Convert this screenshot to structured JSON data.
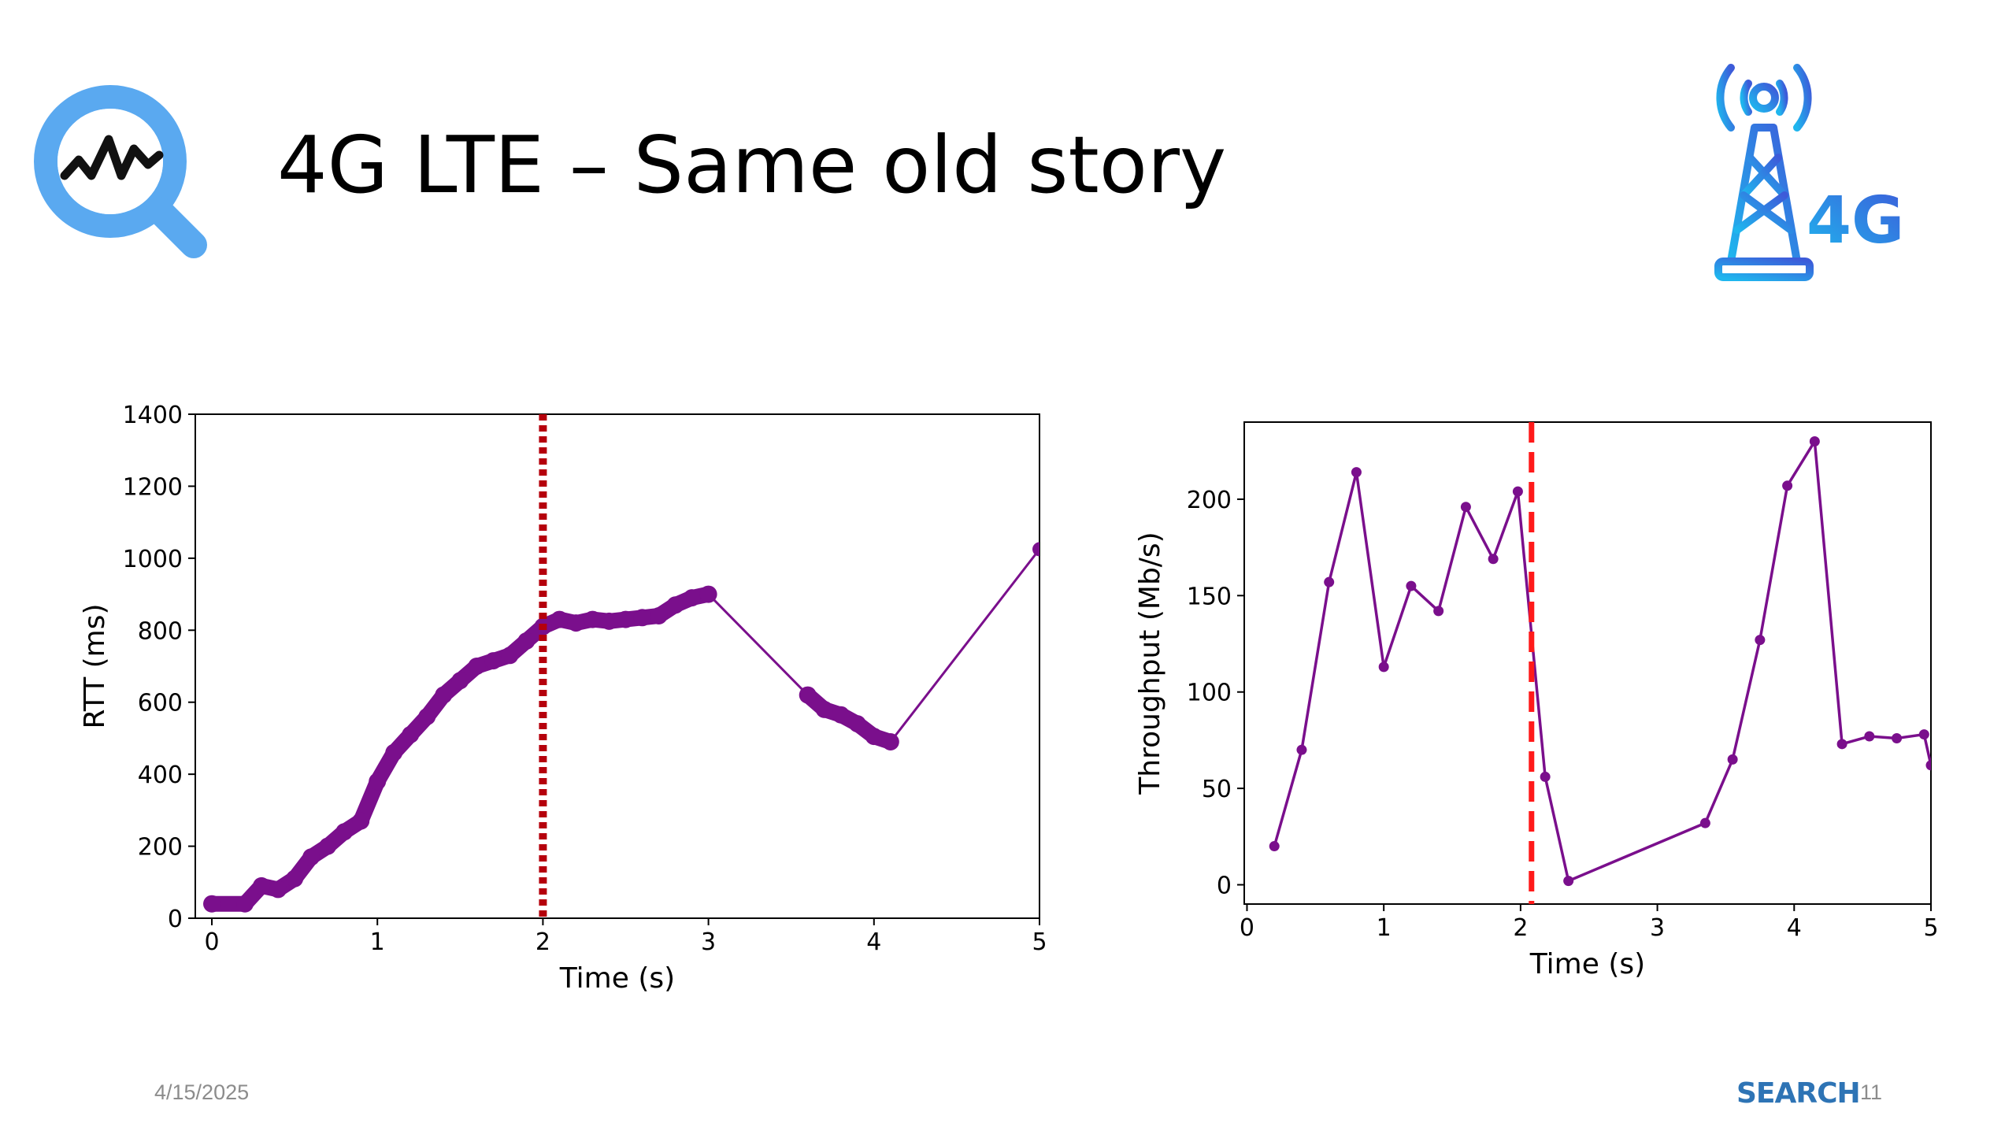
{
  "slide": {
    "title": "4G LTE – Same old story",
    "date": "4/15/2025",
    "brand": "SEARCH",
    "page_number": "11",
    "logo_right_label": "4G"
  },
  "colors": {
    "series": "#7a0f8c",
    "marker_left": "#b5000c",
    "marker_right": "#ff1a1a",
    "brand": "#2e74b5",
    "icon_blue": "#5aa9f0"
  },
  "icons": {
    "left": "magnifier-waveform-icon",
    "right": "cell-tower-4g-icon"
  },
  "chart_data": [
    {
      "type": "scatter",
      "title": "",
      "xlabel": "Time (s)",
      "ylabel": "RTT (ms)",
      "xlim": [
        -0.1,
        5
      ],
      "ylim": [
        0,
        1400
      ],
      "xticks": [
        0,
        1,
        2,
        3,
        4,
        5
      ],
      "yticks": [
        0,
        200,
        400,
        600,
        800,
        1000,
        1200,
        1400
      ],
      "vline": {
        "x": 2.0,
        "style": "dotted"
      },
      "grid": false,
      "segments": [
        [
          [
            0.0,
            40
          ],
          [
            0.2,
            40
          ],
          [
            0.3,
            90
          ],
          [
            0.4,
            80
          ],
          [
            0.5,
            110
          ],
          [
            0.6,
            170
          ],
          [
            0.7,
            200
          ],
          [
            0.8,
            240
          ],
          [
            0.9,
            270
          ],
          [
            1.0,
            380
          ],
          [
            1.1,
            460
          ],
          [
            1.2,
            510
          ],
          [
            1.3,
            560
          ],
          [
            1.4,
            620
          ],
          [
            1.5,
            660
          ],
          [
            1.6,
            700
          ],
          [
            1.7,
            715
          ],
          [
            1.8,
            730
          ],
          [
            1.9,
            770
          ],
          [
            2.0,
            810
          ],
          [
            2.1,
            830
          ],
          [
            2.2,
            820
          ],
          [
            2.3,
            830
          ],
          [
            2.4,
            825
          ],
          [
            2.5,
            830
          ],
          [
            2.6,
            835
          ],
          [
            2.7,
            840
          ],
          [
            2.8,
            870
          ],
          [
            2.9,
            890
          ],
          [
            3.0,
            900
          ]
        ],
        [
          [
            3.6,
            620
          ],
          [
            3.7,
            580
          ],
          [
            3.8,
            565
          ],
          [
            3.9,
            540
          ],
          [
            4.0,
            505
          ],
          [
            4.1,
            490
          ]
        ]
      ],
      "connectors": [
        [
          [
            3.0,
            900
          ],
          [
            3.6,
            620
          ]
        ],
        [
          [
            4.1,
            490
          ],
          [
            5.0,
            1025
          ]
        ]
      ]
    },
    {
      "type": "line",
      "title": "",
      "xlabel": "Time (s)",
      "ylabel": "Throughput (Mb/s)",
      "xlim": [
        -0.02,
        5
      ],
      "ylim": [
        -10,
        240
      ],
      "xticks": [
        0,
        1,
        2,
        3,
        4,
        5
      ],
      "yticks": [
        0,
        50,
        100,
        150,
        200
      ],
      "vline": {
        "x": 2.08,
        "style": "dashed"
      },
      "grid": false,
      "x": [
        0.2,
        0.4,
        0.6,
        0.8,
        1.0,
        1.2,
        1.4,
        1.6,
        1.8,
        1.98,
        2.18,
        2.35,
        3.35,
        3.55,
        3.75,
        3.95,
        4.15,
        4.35,
        4.55,
        4.75,
        4.95,
        5.0
      ],
      "y": [
        20,
        70,
        157,
        214,
        113,
        155,
        142,
        196,
        169,
        204,
        56,
        2,
        32,
        65,
        127,
        207,
        230,
        73,
        77,
        76,
        78,
        62
      ]
    }
  ]
}
